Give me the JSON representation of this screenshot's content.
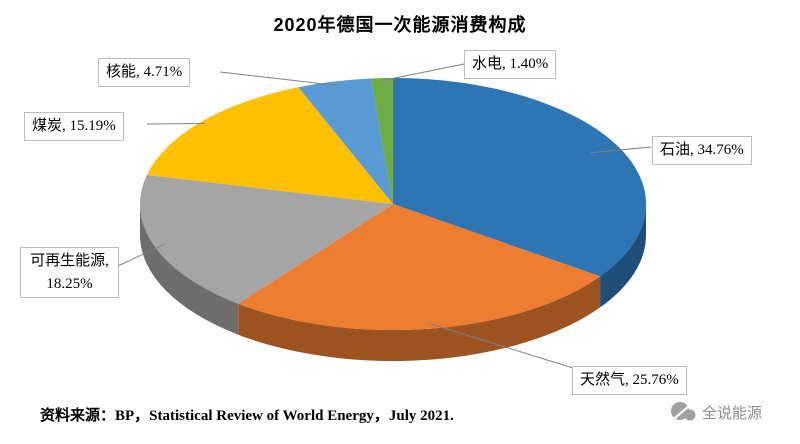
{
  "chart_data": {
    "type": "pie",
    "style": "3d",
    "title": "2020年德国一次能源消费构成",
    "labels": [
      "石油",
      "天然气",
      "可再生能源",
      "煤炭",
      "核能",
      "水电"
    ],
    "values": [
      34.76,
      25.76,
      18.25,
      15.19,
      4.71,
      1.4
    ],
    "unit": "%",
    "colors": [
      "#2E75B6",
      "#ED7D31",
      "#A5A5A5",
      "#FFC000",
      "#5B9BD5",
      "#70AD47"
    ],
    "display_labels": [
      "石油, 34.76%",
      "天然气, 25.76%",
      "可再生能源, 18.25%",
      "煤炭, 15.19%",
      "核能, 4.71%",
      "水电, 1.40%"
    ],
    "start_angle_deg": 0,
    "direction": "clockwise",
    "legend": "none",
    "label_style": "callout-with-leader-lines"
  },
  "footer": {
    "source": "资料来源：BP，Statistical Review of World Energy，July 2021."
  },
  "watermark": {
    "text": "全说能源"
  }
}
